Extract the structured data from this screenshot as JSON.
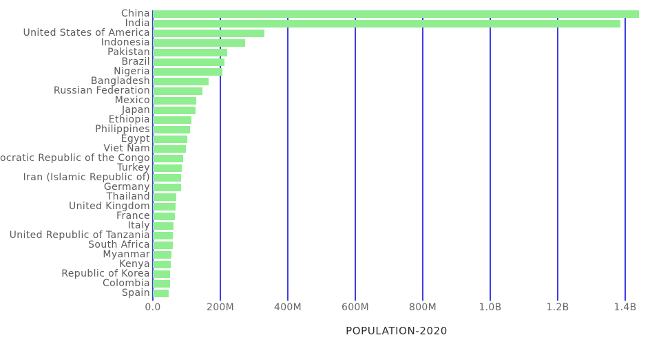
{
  "chart_data": {
    "type": "bar",
    "orientation": "horizontal",
    "xlabel": "POPULATION-2020",
    "ylabel": "",
    "grid": true,
    "legend": false,
    "xlim_millions": [
      0,
      1450
    ],
    "categories": [
      "China",
      "India",
      "United States of America",
      "Indonesia",
      "Pakistan",
      "Brazil",
      "Nigeria",
      "Bangladesh",
      "Russian Federation",
      "Mexico",
      "Japan",
      "Ethiopia",
      "Philippines",
      "Egypt",
      "Viet Nam",
      "Democratic Republic of the Congo",
      "Turkey",
      "Iran (Islamic Republic of)",
      "Germany",
      "Thailand",
      "United Kingdom",
      "France",
      "Italy",
      "United Republic of Tanzania",
      "South Africa",
      "Myanmar",
      "Kenya",
      "Republic of Korea",
      "Colombia",
      "Spain"
    ],
    "values_millions": [
      1440,
      1385,
      331,
      273,
      221,
      213,
      206,
      165,
      146,
      129,
      126,
      115,
      110,
      102,
      97,
      90,
      85,
      84,
      84,
      70,
      68,
      65,
      61,
      60,
      59,
      55,
      54,
      51,
      51,
      47
    ],
    "x_ticks": [
      {
        "label": "0.0",
        "value": 0
      },
      {
        "label": "200M",
        "value": 200
      },
      {
        "label": "400M",
        "value": 400
      },
      {
        "label": "600M",
        "value": 600
      },
      {
        "label": "800M",
        "value": 800
      },
      {
        "label": "1.0B",
        "value": 1000
      },
      {
        "label": "1.2B",
        "value": 1200
      },
      {
        "label": "1.4B",
        "value": 1400
      }
    ],
    "colors": {
      "bar": "#90ee90",
      "gridline": "#3c3ce6",
      "y_label_text": "#5b5b5b",
      "x_tick_text": "#666666",
      "axis_title_text": "#2e2e2e"
    }
  }
}
